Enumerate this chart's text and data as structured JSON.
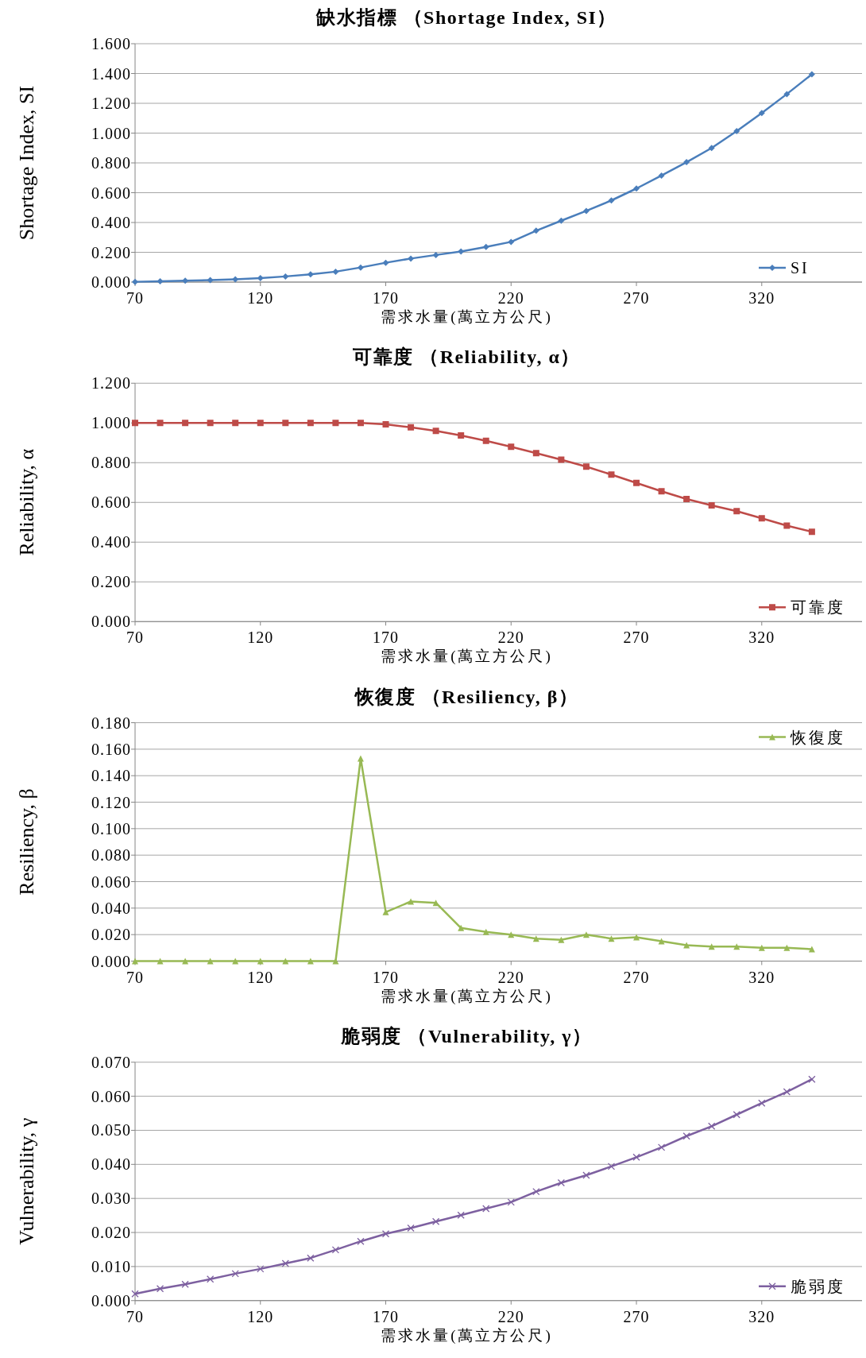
{
  "chart_data": [
    {
      "type": "line",
      "title": "缺水指標 （Shortage Index, SI）",
      "xlabel": "需求水量(萬立方公尺)",
      "ylabel": "Shortage Index, SI",
      "x": [
        70,
        80,
        90,
        100,
        110,
        120,
        130,
        140,
        150,
        160,
        170,
        180,
        190,
        200,
        210,
        220,
        230,
        240,
        250,
        260,
        270,
        280,
        290,
        300,
        310,
        320,
        330,
        340
      ],
      "series": [
        {
          "name": "SI",
          "color": "#4a7ebb",
          "values": [
            0.002,
            0.005,
            0.009,
            0.013,
            0.019,
            0.027,
            0.038,
            0.052,
            0.07,
            0.098,
            0.13,
            0.158,
            0.182,
            0.205,
            0.236,
            0.27,
            0.345,
            0.412,
            0.478,
            0.548,
            0.628,
            0.715,
            0.805,
            0.9,
            1.013,
            1.135,
            1.262,
            1.395
          ]
        }
      ],
      "marker": "diamond",
      "grid": "y",
      "legend": "bottom right",
      "xlim": [
        70,
        360
      ],
      "xticks": [
        70,
        120,
        170,
        220,
        270,
        320
      ],
      "ylim": [
        0,
        1.6
      ],
      "yticks": [
        {
          "value": 0,
          "label": "0.000"
        },
        {
          "value": 0.2,
          "label": "0.200"
        },
        {
          "value": 0.4,
          "label": "0.400"
        },
        {
          "value": 0.6,
          "label": "0.600"
        },
        {
          "value": 0.8,
          "label": "0.800"
        },
        {
          "value": 1.0,
          "label": "1.000"
        },
        {
          "value": 1.2,
          "label": "1.200"
        },
        {
          "value": 1.4,
          "label": "1.400"
        },
        {
          "value": 1.6,
          "label": "1.600"
        }
      ]
    },
    {
      "type": "line",
      "title": "可靠度 （Reliability, α）",
      "xlabel": "需求水量(萬立方公尺)",
      "ylabel": "Reliability, α",
      "x": [
        70,
        80,
        90,
        100,
        110,
        120,
        130,
        140,
        150,
        160,
        170,
        180,
        190,
        200,
        210,
        220,
        230,
        240,
        250,
        260,
        270,
        280,
        290,
        300,
        310,
        320,
        330,
        340
      ],
      "series": [
        {
          "name": "可靠度",
          "color": "#be4b48",
          "values": [
            1.0,
            1.0,
            1.0,
            1.0,
            1.0,
            1.0,
            1.0,
            1.0,
            1.0,
            1.0,
            0.993,
            0.978,
            0.96,
            0.937,
            0.91,
            0.88,
            0.848,
            0.815,
            0.78,
            0.74,
            0.698,
            0.656,
            0.617,
            0.585,
            0.556,
            0.52,
            0.483,
            0.452
          ]
        }
      ],
      "marker": "square",
      "grid": "y",
      "legend": "bottom right",
      "xlim": [
        70,
        360
      ],
      "xticks": [
        70,
        120,
        170,
        220,
        270,
        320
      ],
      "ylim": [
        0,
        1.2
      ],
      "yticks": [
        {
          "value": 0,
          "label": "0.000"
        },
        {
          "value": 0.2,
          "label": "0.200"
        },
        {
          "value": 0.4,
          "label": "0.400"
        },
        {
          "value": 0.6,
          "label": "0.600"
        },
        {
          "value": 0.8,
          "label": "0.800"
        },
        {
          "value": 1.0,
          "label": "1.000"
        },
        {
          "value": 1.2,
          "label": "1.200"
        }
      ]
    },
    {
      "type": "line",
      "title": "恢復度 （Resiliency, β）",
      "xlabel": "需求水量(萬立方公尺)",
      "ylabel": "Resiliency, β",
      "x": [
        70,
        80,
        90,
        100,
        110,
        120,
        130,
        140,
        150,
        160,
        170,
        180,
        190,
        200,
        210,
        220,
        230,
        240,
        250,
        260,
        270,
        280,
        290,
        300,
        310,
        320,
        330,
        340
      ],
      "series": [
        {
          "name": "恢復度",
          "color": "#98b954",
          "values": [
            0,
            0,
            0,
            0,
            0,
            0,
            0,
            0,
            0,
            0.153,
            0.037,
            0.045,
            0.044,
            0.025,
            0.022,
            0.02,
            0.017,
            0.016,
            0.02,
            0.017,
            0.018,
            0.015,
            0.012,
            0.011,
            0.011,
            0.01,
            0.01,
            0.009
          ]
        }
      ],
      "marker": "triangle",
      "grid": "y",
      "legend": "top right",
      "xlim": [
        70,
        360
      ],
      "xticks": [
        70,
        120,
        170,
        220,
        270,
        320
      ],
      "ylim": [
        0,
        0.18
      ],
      "yticks": [
        {
          "value": 0,
          "label": "0.000"
        },
        {
          "value": 0.02,
          "label": "0.020"
        },
        {
          "value": 0.04,
          "label": "0.040"
        },
        {
          "value": 0.06,
          "label": "0.060"
        },
        {
          "value": 0.08,
          "label": "0.080"
        },
        {
          "value": 0.1,
          "label": "0.100"
        },
        {
          "value": 0.12,
          "label": "0.120"
        },
        {
          "value": 0.14,
          "label": "0.140"
        },
        {
          "value": 0.16,
          "label": "0.160"
        },
        {
          "value": 0.18,
          "label": "0.180"
        }
      ]
    },
    {
      "type": "line",
      "title": "脆弱度 （Vulnerability, γ）",
      "xlabel": "需求水量(萬立方公尺)",
      "ylabel": "Vulnerability, γ",
      "x": [
        70,
        80,
        90,
        100,
        110,
        120,
        130,
        140,
        150,
        160,
        170,
        180,
        190,
        200,
        210,
        220,
        230,
        240,
        250,
        260,
        270,
        280,
        290,
        300,
        310,
        320,
        330,
        340
      ],
      "series": [
        {
          "name": "脆弱度",
          "color": "#7d60a0",
          "values": [
            0.002,
            0.0035,
            0.0048,
            0.0063,
            0.0079,
            0.0093,
            0.0109,
            0.0125,
            0.0149,
            0.0174,
            0.0196,
            0.0213,
            0.0232,
            0.0251,
            0.027,
            0.0289,
            0.032,
            0.0346,
            0.0368,
            0.0394,
            0.0421,
            0.045,
            0.0483,
            0.0512,
            0.0546,
            0.058,
            0.0613,
            0.065
          ]
        }
      ],
      "marker": "cross",
      "grid": "y",
      "legend": "bottom right",
      "xlim": [
        70,
        360
      ],
      "xticks": [
        70,
        120,
        170,
        220,
        270,
        320
      ],
      "ylim": [
        0,
        0.07
      ],
      "yticks": [
        {
          "value": 0,
          "label": "0.000"
        },
        {
          "value": 0.01,
          "label": "0.010"
        },
        {
          "value": 0.02,
          "label": "0.020"
        },
        {
          "value": 0.03,
          "label": "0.030"
        },
        {
          "value": 0.04,
          "label": "0.040"
        },
        {
          "value": 0.05,
          "label": "0.050"
        },
        {
          "value": 0.06,
          "label": "0.060"
        },
        {
          "value": 0.07,
          "label": "0.070"
        }
      ]
    }
  ]
}
